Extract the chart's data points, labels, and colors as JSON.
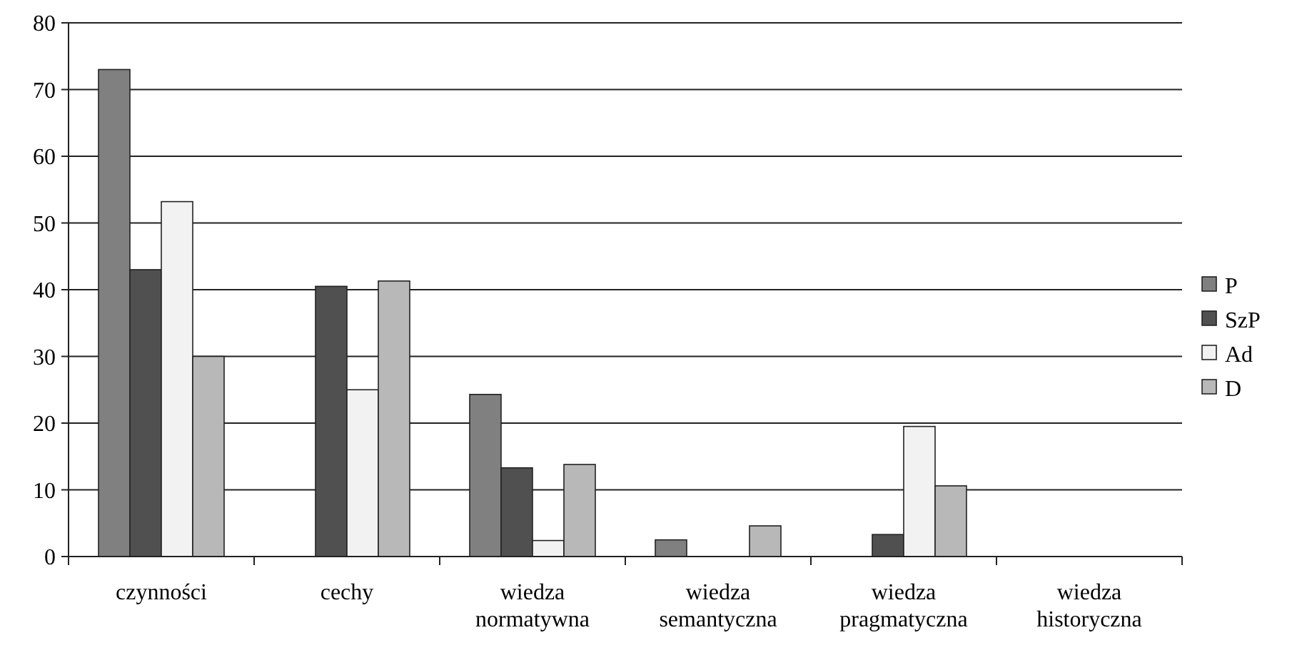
{
  "chart_data": {
    "type": "bar",
    "categories": [
      "czynności",
      "cechy",
      "wiedza normatywna",
      "wiedza semantyczna",
      "wiedza pragmatyczna",
      "wiedza historyczna"
    ],
    "series": [
      {
        "name": "P",
        "color": "#808080",
        "values": [
          73,
          0,
          24.3,
          2.5,
          0,
          0
        ]
      },
      {
        "name": "SzP",
        "color": "#505050",
        "values": [
          43,
          40.5,
          13.3,
          0,
          3.3,
          0
        ]
      },
      {
        "name": "Ad",
        "color": "#f2f2f2",
        "values": [
          53.2,
          25,
          2.4,
          0,
          19.5,
          0
        ]
      },
      {
        "name": "D",
        "color": "#b8b8b8",
        "values": [
          30,
          41.3,
          13.8,
          4.6,
          10.6,
          0
        ]
      }
    ],
    "ylim": [
      0,
      80
    ],
    "yticks": [
      0,
      10,
      20,
      30,
      40,
      50,
      60,
      70,
      80
    ],
    "grid": "y",
    "legend": "right"
  }
}
